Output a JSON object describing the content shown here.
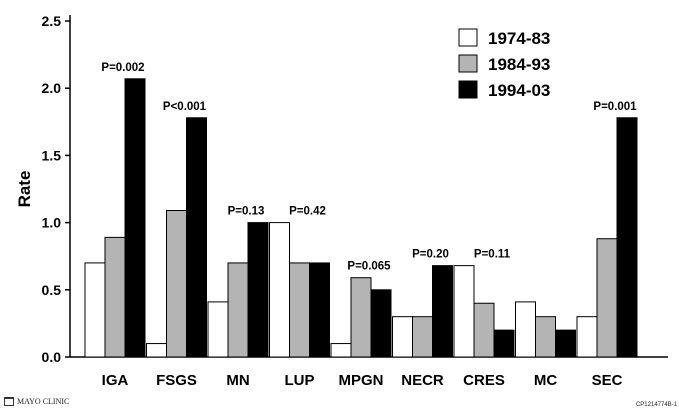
{
  "chart_data": {
    "type": "bar",
    "ylabel": "Rate",
    "ylim": [
      0,
      2.5
    ],
    "yticks": [
      "0.0",
      "0.5",
      "1.0",
      "1.5",
      "2.0",
      "2.5"
    ],
    "categories": [
      "IGA",
      "FSGS",
      "MN",
      "LUP",
      "MPGN",
      "NECR",
      "CRES",
      "MC",
      "SEC"
    ],
    "series": [
      {
        "name": "1974-83",
        "color": "#ffffff",
        "values": [
          0.7,
          0.1,
          0.41,
          1.0,
          0.1,
          0.3,
          0.68,
          0.41,
          0.3
        ]
      },
      {
        "name": "1984-93",
        "color": "#b4b4b4",
        "values": [
          0.89,
          1.09,
          0.7,
          0.7,
          0.59,
          0.3,
          0.4,
          0.3,
          0.88
        ]
      },
      {
        "name": "1994-03",
        "color": "#000000",
        "values": [
          2.07,
          1.78,
          1.0,
          0.7,
          0.5,
          0.68,
          0.2,
          0.2,
          1.78
        ]
      }
    ],
    "annotations": [
      "P=0.002",
      "P<0.001",
      "P=0.13",
      "P=0.42",
      "P=0.065",
      "P=0.20",
      "P=0.11",
      "",
      "P=0.001"
    ],
    "legend_position": "top-right",
    "grid": false
  },
  "footer": {
    "logo_text": "MAYO CLINIC",
    "code": "CP1214774B-1"
  }
}
